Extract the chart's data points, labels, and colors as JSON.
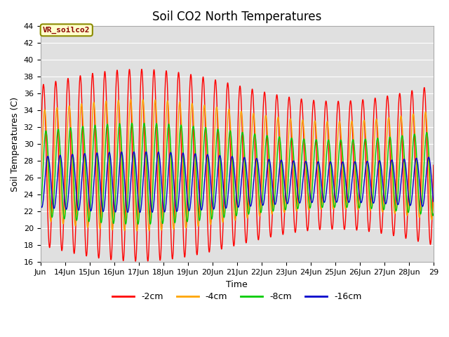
{
  "title": "Soil CO2 North Temperatures",
  "xlabel": "Time",
  "ylabel": "Soil Temperatures (C)",
  "annotation": "VR_soilco2",
  "ylim": [
    16,
    44
  ],
  "xlim_start": 13,
  "xlim_end": 29,
  "colors": {
    "-2cm": "#ff0000",
    "-4cm": "#ffa500",
    "-8cm": "#00cc00",
    "-16cm": "#0000cc"
  },
  "legend_labels": [
    "-2cm",
    "-4cm",
    "-8cm",
    "-16cm"
  ],
  "xtick_positions": [
    13,
    14,
    15,
    16,
    17,
    18,
    19,
    20,
    21,
    22,
    23,
    24,
    25,
    26,
    27,
    28,
    29
  ],
  "xtick_labels": [
    "Jun",
    "14Jun",
    "15Jun",
    "16Jun",
    "17Jun",
    "18Jun",
    "19Jun",
    "20Jun",
    "21Jun",
    "22Jun",
    "23Jun",
    "24Jun",
    "25Jun",
    "26Jun",
    "27Jun",
    "28Jun",
    "29"
  ],
  "ytick_positions": [
    16,
    18,
    20,
    22,
    24,
    26,
    28,
    30,
    32,
    34,
    36,
    38,
    40,
    42,
    44
  ],
  "background_color": "#e0e0e0",
  "title_fontsize": 12,
  "axis_label_fontsize": 9,
  "tick_fontsize": 8,
  "period_2cm": 0.5,
  "period_4cm": 0.5,
  "period_8cm": 0.5,
  "period_16cm": 0.5,
  "amp_2cm": 9.5,
  "amp_4cm": 6.5,
  "amp_8cm": 5.0,
  "amp_16cm": 3.0,
  "mean_2cm": 27.5,
  "mean_4cm": 27.5,
  "mean_8cm": 26.5,
  "mean_16cm": 25.5,
  "phase_2cm": 0.0,
  "phase_4cm": 0.05,
  "phase_8cm": 0.1,
  "phase_16cm": 0.18
}
